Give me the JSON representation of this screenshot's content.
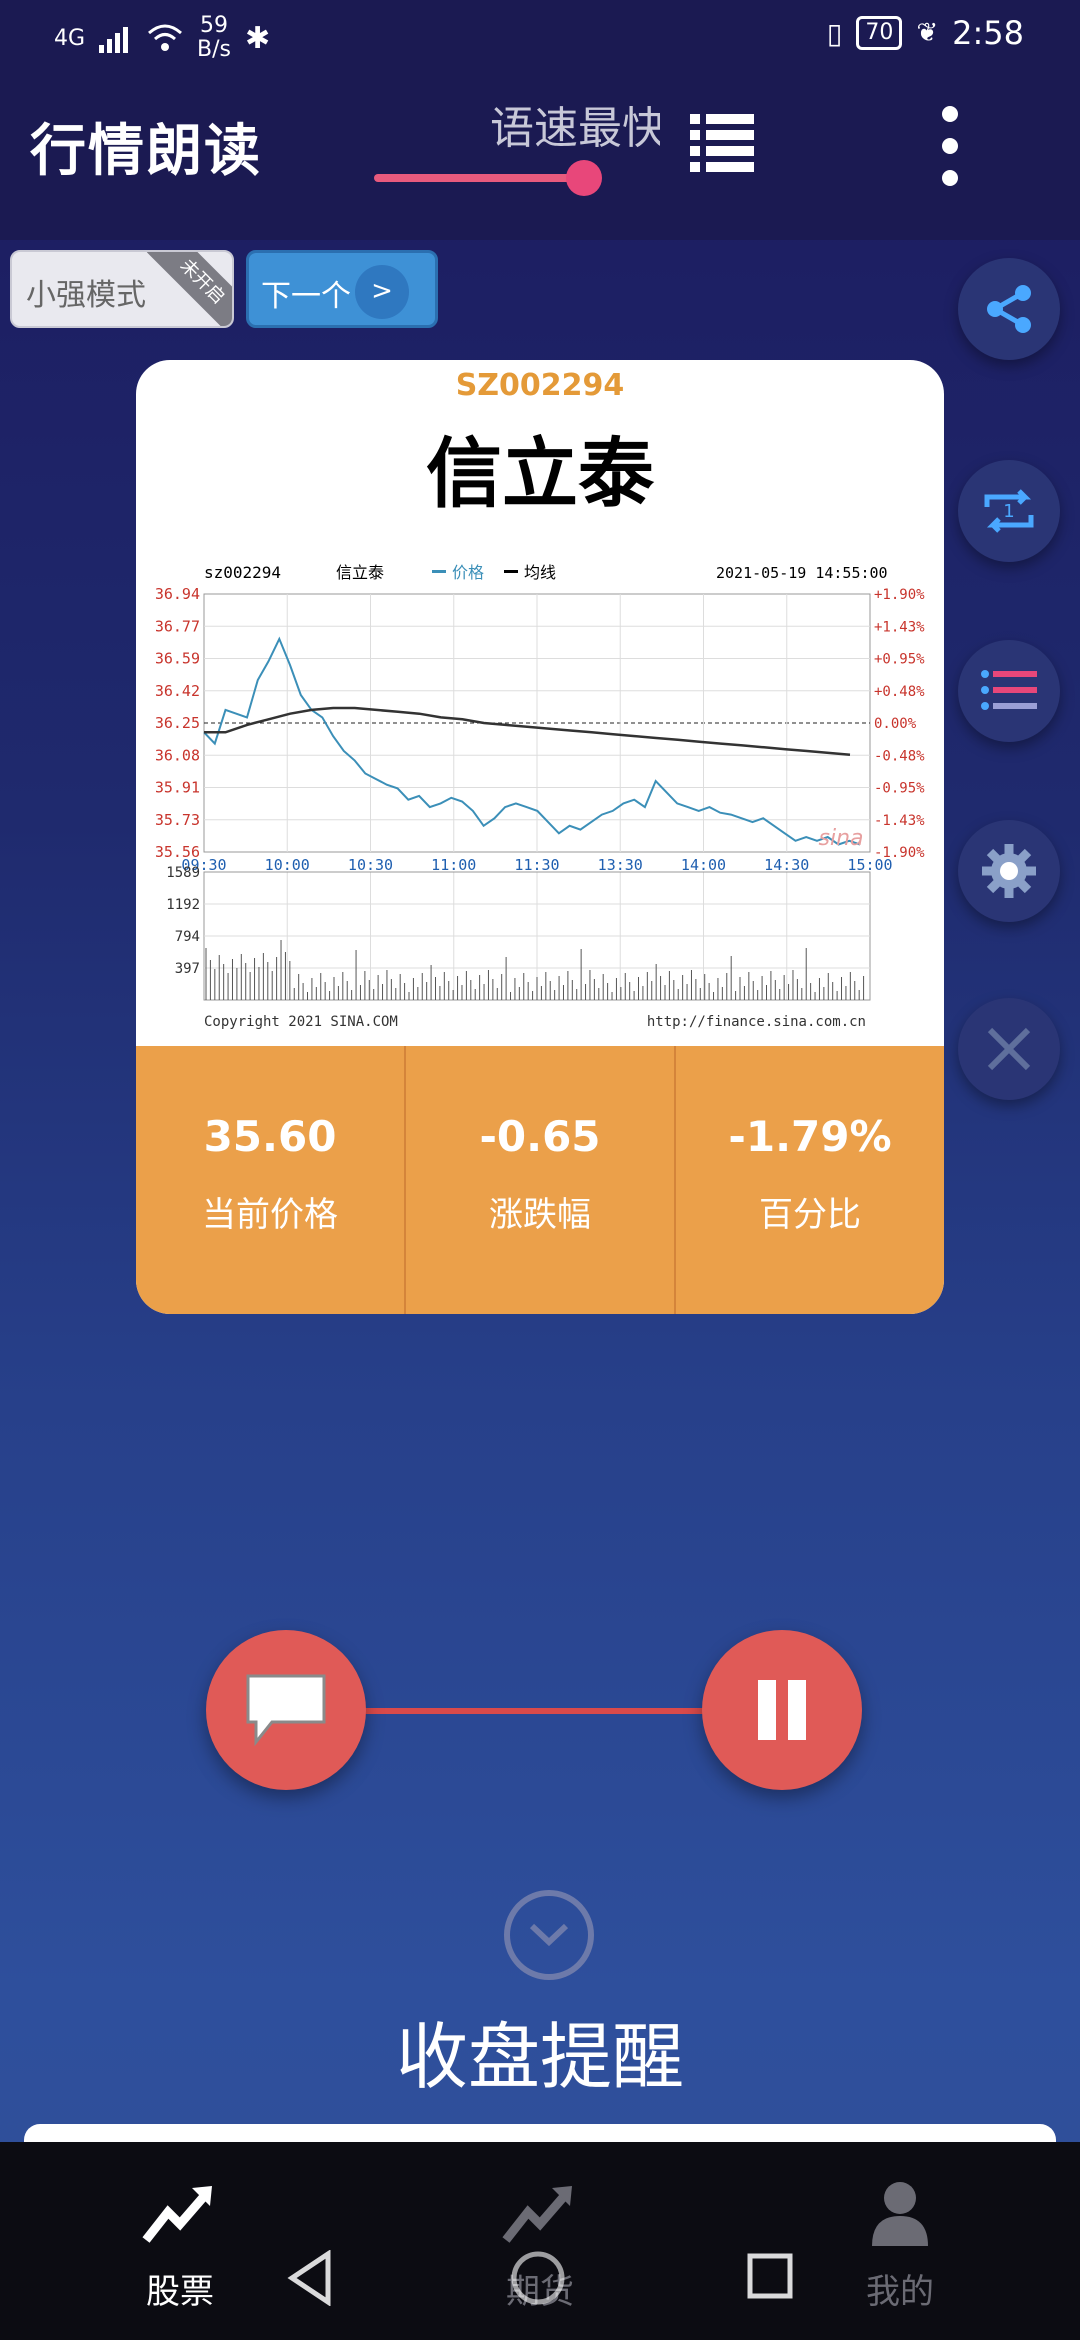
{
  "status_bar": {
    "network": "4G",
    "speed_value": "59",
    "speed_unit": "B/s",
    "battery": "70",
    "time": "2:58"
  },
  "header": {
    "title": "行情朗读",
    "speed_label": "语速最快",
    "speed_level": 0.9
  },
  "mode_button": {
    "label": "小强模式",
    "badge": "未开启"
  },
  "next_button": {
    "label": "下一个",
    "arrow": ">"
  },
  "side_buttons": [
    "share-icon",
    "repeat-one-icon",
    "playlist-icon",
    "settings-icon",
    "close-icon"
  ],
  "card": {
    "code": "SZ002294",
    "name": "信立泰",
    "stats": [
      {
        "value": "35.60",
        "label": "当前价格"
      },
      {
        "value": "-0.65",
        "label": "涨跌幅"
      },
      {
        "value": "-1.79%",
        "label": "百分比"
      }
    ]
  },
  "chart_data": {
    "type": "line",
    "code_label": "sz002294",
    "name_label": "信立泰",
    "legend": [
      "价格",
      "均线"
    ],
    "timestamp": "2021-05-19 14:55:00",
    "y_ticks_left": [
      "36.94",
      "36.77",
      "36.59",
      "36.42",
      "36.25",
      "36.08",
      "35.91",
      "35.73",
      "35.56"
    ],
    "y_ticks_right": [
      "+1.90%",
      "+1.43%",
      "+0.95%",
      "+0.48%",
      "0.00%",
      "-0.48%",
      "-0.95%",
      "-1.43%",
      "-1.90%"
    ],
    "x_ticks": [
      "09:30",
      "10:00",
      "10:30",
      "11:00",
      "11:30",
      "13:30",
      "14:00",
      "14:30",
      "15:00"
    ],
    "ylim": [
      35.56,
      36.94
    ],
    "series": [
      {
        "name": "价格",
        "values": [
          36.2,
          36.14,
          36.32,
          36.3,
          36.28,
          36.48,
          36.58,
          36.7,
          36.56,
          36.4,
          36.32,
          36.28,
          36.18,
          36.1,
          36.05,
          35.98,
          35.95,
          35.92,
          35.9,
          35.84,
          35.86,
          35.8,
          35.82,
          35.85,
          35.83,
          35.78,
          35.7,
          35.74,
          35.8,
          35.82,
          35.8,
          35.78,
          35.72,
          35.66,
          35.7,
          35.68,
          35.72,
          35.76,
          35.78,
          35.82,
          35.84,
          35.8,
          35.94,
          35.88,
          35.82,
          35.8,
          35.78,
          35.8,
          35.77,
          35.76,
          35.74,
          35.72,
          35.74,
          35.7,
          35.66,
          35.62,
          35.64,
          35.62,
          35.64,
          35.6,
          35.62,
          35.6
        ]
      },
      {
        "name": "均线",
        "values": [
          36.2,
          36.2,
          36.24,
          36.27,
          36.3,
          36.32,
          36.33,
          36.33,
          36.32,
          36.31,
          36.3,
          36.28,
          36.27,
          36.25,
          36.24,
          36.23,
          36.22,
          36.21,
          36.2,
          36.19,
          36.18,
          36.17,
          36.16,
          36.15,
          36.14,
          36.13,
          36.12,
          36.11,
          36.1,
          36.09,
          36.08
        ]
      }
    ],
    "volume": {
      "ticks": [
        "1589",
        "1192",
        "794",
        "397"
      ],
      "ylim": [
        0,
        1589
      ]
    },
    "footer_left": "Copyright 2021 SINA.COM",
    "footer_right": "http://finance.sina.com.cn",
    "watermark": "sina"
  },
  "controls": {
    "left": "chat-bubble-icon",
    "right": "pause-icon"
  },
  "bottom_title": "收盘提醒",
  "tabs": [
    {
      "label": "股票",
      "icon": "stock-trend-icon",
      "active": true
    },
    {
      "label": "期货",
      "icon": "futures-trend-icon",
      "active": false
    },
    {
      "label": "我的",
      "icon": "user-icon",
      "active": false
    }
  ],
  "colors": {
    "accent_pink": "#e8477a",
    "card_orange": "#eba04a",
    "code_orange": "#e49a38",
    "control_red": "#e05a57",
    "next_blue": "#3e91d6"
  }
}
